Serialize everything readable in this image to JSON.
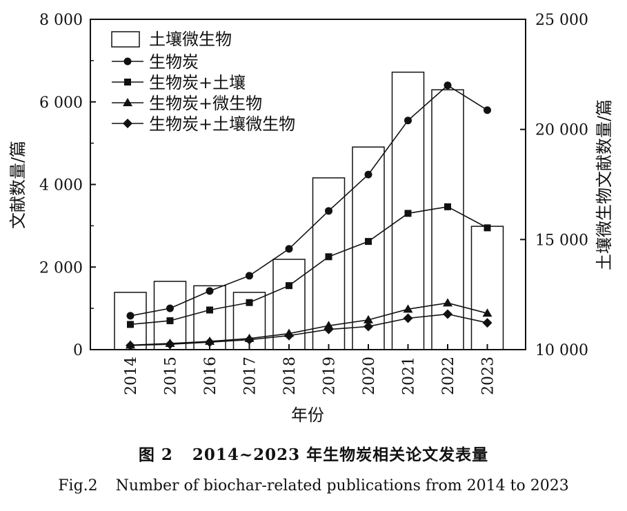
{
  "chart_data": {
    "type": "bar+line",
    "categories": [
      "2014",
      "2015",
      "2016",
      "2017",
      "2018",
      "2019",
      "2020",
      "2021",
      "2022",
      "2023"
    ],
    "bar_series": {
      "name": "土壤微生物",
      "axis": "right",
      "values": [
        12600,
        13100,
        12900,
        12600,
        14100,
        17800,
        19200,
        22600,
        21800,
        15600
      ]
    },
    "line_series": [
      {
        "name": "生物炭",
        "marker": "circle",
        "values": [
          820,
          1000,
          1420,
          1790,
          2440,
          3360,
          4240,
          5550,
          6400,
          5800
        ]
      },
      {
        "name": "生物炭+土壤",
        "marker": "square",
        "values": [
          610,
          700,
          960,
          1140,
          1550,
          2250,
          2620,
          3300,
          3460,
          2950
        ]
      },
      {
        "name": "生物炭+微生物",
        "marker": "triangle",
        "values": [
          110,
          150,
          200,
          270,
          390,
          580,
          720,
          980,
          1130,
          880
        ]
      },
      {
        "name": "生物炭+土壤微生物",
        "marker": "diamond",
        "values": [
          100,
          130,
          180,
          240,
          340,
          490,
          560,
          760,
          860,
          650
        ]
      }
    ],
    "left_axis": {
      "label": "文献数量/篇",
      "min": 0,
      "max": 8000,
      "ticks": [
        "0",
        "2 000",
        "4 000",
        "6 000",
        "8 000"
      ]
    },
    "right_axis": {
      "label": "土壤微生物文献数量/篇",
      "min": 10000,
      "max": 25000,
      "ticks": [
        "10 000",
        "15 000",
        "20 000",
        "25 000"
      ]
    },
    "xlabel": "年份",
    "legend_position": "top-left"
  },
  "caption": {
    "cn_label": "图 2",
    "cn_text": "2014~2023 年生物炭相关论文发表量",
    "en_label": "Fig.2",
    "en_text": "Number of biochar-related publications from 2014 to 2023"
  }
}
